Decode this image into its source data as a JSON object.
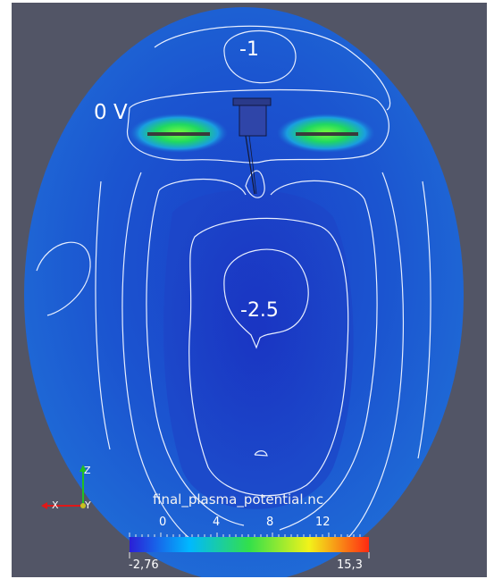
{
  "viewer": {
    "background_color": "#525566"
  },
  "contours": {
    "top_label": "-1",
    "left_label": "0 V",
    "center_label": "-2.5"
  },
  "scalar_bar": {
    "title": "final_plasma_potential.nc",
    "ticks": [
      "0",
      "4",
      "8",
      "12"
    ],
    "range_min": "-2,76",
    "range_max": "15,3",
    "colors": [
      "#2b1fd6",
      "#00b8ff",
      "#33e04a",
      "#f2f21a",
      "#ff2a12"
    ]
  },
  "orientation_axes": {
    "z": "Z",
    "x": "X",
    "y": "Y"
  }
}
